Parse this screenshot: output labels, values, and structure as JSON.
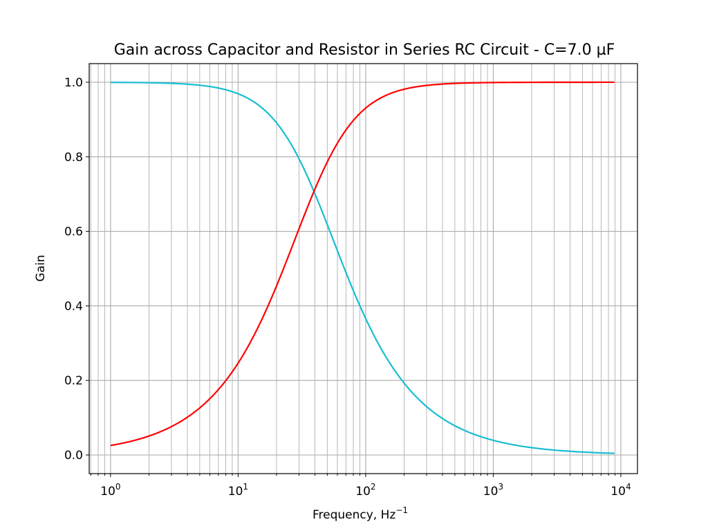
{
  "chart_data": {
    "type": "line",
    "title": "Gain across Capacitor and Resistor in Series RC Circuit - C=7.0 µF",
    "xlabel": "Frequency, Hz",
    "xlabel_sup": "−1",
    "ylabel": "Gain",
    "xscale": "log",
    "xlim": [
      0.68,
      13500
    ],
    "ylim": [
      -0.05,
      1.05
    ],
    "grid": true,
    "x_ticks": [
      {
        "value": 1,
        "base": "10",
        "exp": "0"
      },
      {
        "value": 10,
        "base": "10",
        "exp": "1"
      },
      {
        "value": 100,
        "base": "10",
        "exp": "2"
      },
      {
        "value": 1000,
        "base": "10",
        "exp": "3"
      },
      {
        "value": 10000,
        "base": "10",
        "exp": "4"
      }
    ],
    "y_ticks": [
      {
        "value": 0.0,
        "label": "0.0"
      },
      {
        "value": 0.2,
        "label": "0.2"
      },
      {
        "value": 0.4,
        "label": "0.4"
      },
      {
        "value": 0.6,
        "label": "0.6"
      },
      {
        "value": 0.8,
        "label": "0.8"
      },
      {
        "value": 1.0,
        "label": "1.0"
      }
    ],
    "corner_frequency_hz": 39.3,
    "x_range": [
      1,
      8900
    ],
    "series": [
      {
        "key": "capacitor",
        "color": "#17becf",
        "x": [
          1,
          2,
          3,
          5,
          7,
          10,
          15,
          20,
          30,
          39.3,
          50,
          70,
          100,
          150,
          200,
          300,
          500,
          700,
          1000,
          2000,
          5000,
          8900
        ],
        "y": [
          0.9997,
          0.9987,
          0.9971,
          0.992,
          0.9845,
          0.969,
          0.934,
          0.891,
          0.795,
          0.707,
          0.618,
          0.49,
          0.366,
          0.253,
          0.193,
          0.13,
          0.078,
          0.056,
          0.039,
          0.02,
          0.008,
          0.004
        ]
      },
      {
        "key": "resistor",
        "color": "#ff0000",
        "x": [
          1,
          2,
          3,
          5,
          7,
          10,
          15,
          20,
          30,
          39.3,
          50,
          70,
          100,
          150,
          200,
          300,
          500,
          700,
          1000,
          2000,
          5000,
          8900
        ],
        "y": [
          0.0254,
          0.0508,
          0.0762,
          0.126,
          0.175,
          0.247,
          0.356,
          0.453,
          0.606,
          0.707,
          0.786,
          0.872,
          0.931,
          0.967,
          0.981,
          0.992,
          0.997,
          0.998,
          0.999,
          0.9998,
          0.99997,
          0.99999
        ]
      }
    ]
  }
}
